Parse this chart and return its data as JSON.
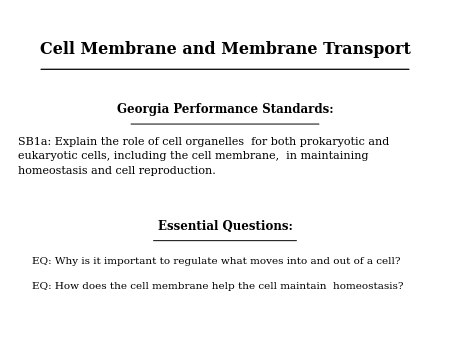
{
  "title": "Cell Membrane and Membrane Transport",
  "section1_header": "Georgia Performance Standards:",
  "section1_body": "SB1a: Explain the role of cell organelles  for both prokaryotic and\neukaryotic cells, including the cell membrane,  in maintaining\nhomeostasis and cell reproduction.",
  "section2_header": "Essential Questions:",
  "eq1": "EQ: Why is it important to regulate what moves into and out of a cell?",
  "eq2": "EQ: How does the cell membrane help the cell maintain  homeostasis?",
  "bg_color": "#ffffff",
  "text_color": "#000000",
  "title_fontsize": 11.5,
  "header_fontsize": 8.5,
  "body_fontsize": 8.0,
  "eq_fontsize": 7.5
}
